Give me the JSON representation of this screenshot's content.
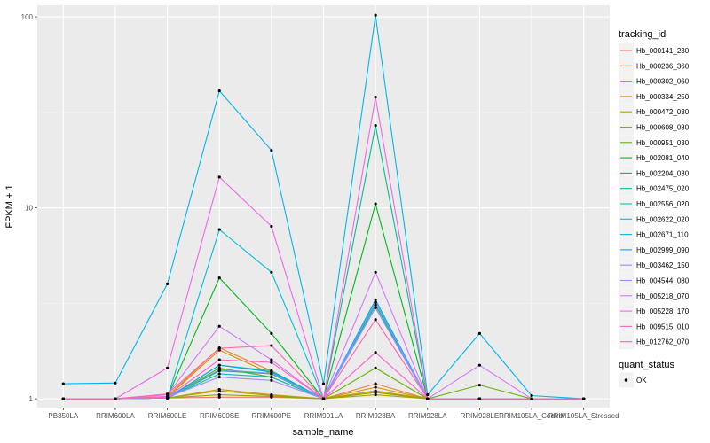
{
  "chart_data": {
    "type": "line",
    "xlabel": "sample_name",
    "ylabel": "FPKM + 1",
    "y_scale": "log10",
    "ylim": [
      0.9,
      115
    ],
    "y_ticks": [
      1,
      10,
      100
    ],
    "y_tick_labels": [
      "1",
      "10",
      "100"
    ],
    "categories": [
      "PB350LA",
      "RRIM600LA",
      "RRIM600LE",
      "RRIM600SE",
      "RRIM600PE",
      "RRIM901LA",
      "RRIM928BA",
      "RRIM928LA",
      "RRIM928LE",
      "RRIM105LA_Control",
      "RRIM105LA_Stressed"
    ],
    "grid": true,
    "panel_background": "#ebebeb",
    "legend_position": "right",
    "legend_title": "tracking_id",
    "point_legend": {
      "title": "quant_status",
      "entries": [
        "OK"
      ]
    },
    "series": [
      {
        "name": "Hb_000141_230",
        "color": "#F8766D",
        "values": [
          1,
          1,
          1.01,
          1.02,
          1.02,
          1,
          1.08,
          1,
          1,
          1,
          1
        ]
      },
      {
        "name": "Hb_000236_360",
        "color": "#EC8239",
        "values": [
          1,
          1,
          1.03,
          1.85,
          1.4,
          1,
          1.2,
          1,
          1,
          1,
          1
        ]
      },
      {
        "name": "Hb_000302_060",
        "color": "#DB8E00",
        "values": [
          1,
          1,
          1.02,
          1.8,
          1.35,
          1,
          1.15,
          1,
          1,
          1,
          1
        ]
      },
      {
        "name": "Hb_000334_250",
        "color": "#C79800",
        "values": [
          1,
          1,
          1.01,
          1.12,
          1.05,
          1,
          1.1,
          1,
          1,
          1,
          1
        ]
      },
      {
        "name": "Hb_000472_030",
        "color": "#AEA200",
        "values": [
          1,
          1,
          1.01,
          1.1,
          1.04,
          1,
          1.05,
          1,
          1,
          1,
          1
        ]
      },
      {
        "name": "Hb_000608_080",
        "color": "#8FAA00",
        "values": [
          1,
          1,
          1.01,
          1.05,
          1.03,
          1,
          1.08,
          1,
          1,
          1,
          1
        ]
      },
      {
        "name": "Hb_000951_030",
        "color": "#64B200",
        "values": [
          1,
          1,
          1.01,
          1.45,
          1.3,
          1,
          1.45,
          1,
          1.18,
          1,
          1
        ]
      },
      {
        "name": "Hb_002081_040",
        "color": "#00B81B",
        "values": [
          1,
          1,
          1.02,
          4.3,
          2.2,
          1,
          10.5,
          1,
          1,
          1,
          1
        ]
      },
      {
        "name": "Hb_002204_030",
        "color": "#00BD5C",
        "values": [
          1,
          1,
          1.01,
          1.4,
          1.35,
          1,
          3.1,
          1,
          1,
          1,
          1
        ]
      },
      {
        "name": "Hb_002475_020",
        "color": "#00C08E",
        "values": [
          1,
          1,
          1.01,
          1.5,
          1.4,
          1,
          27,
          1,
          1,
          1,
          1
        ]
      },
      {
        "name": "Hb_002556_020",
        "color": "#00C1B7",
        "values": [
          1,
          1,
          1.01,
          1.35,
          1.3,
          1,
          3.0,
          1,
          1,
          1,
          1
        ]
      },
      {
        "name": "Hb_002622_020",
        "color": "#00BDDC",
        "values": [
          1,
          1,
          1.01,
          7.7,
          4.6,
          1,
          3.2,
          1,
          1,
          1,
          1
        ]
      },
      {
        "name": "Hb_002671_110",
        "color": "#00B4F0",
        "values": [
          1.2,
          1.21,
          4.0,
          41,
          20,
          1.2,
          102,
          1.05,
          2.2,
          1.04,
          1
        ]
      },
      {
        "name": "Hb_002999_090",
        "color": "#00A5FF",
        "values": [
          1,
          1,
          1.01,
          1.5,
          1.38,
          1,
          3.3,
          1,
          1,
          1,
          1
        ]
      },
      {
        "name": "Hb_003462_150",
        "color": "#7997FF",
        "values": [
          1,
          1,
          1.01,
          1.42,
          1.36,
          1,
          3.2,
          1,
          1,
          1,
          1
        ]
      },
      {
        "name": "Hb_004544_080",
        "color": "#A58AFF",
        "values": [
          1,
          1,
          1.02,
          1.3,
          1.25,
          1,
          3.0,
          1,
          1,
          1,
          1
        ]
      },
      {
        "name": "Hb_005218_070",
        "color": "#D575FE",
        "values": [
          1,
          1,
          1.05,
          2.4,
          1.6,
          1,
          4.6,
          1,
          1.5,
          1,
          1
        ]
      },
      {
        "name": "Hb_005228_170",
        "color": "#F066EA",
        "values": [
          1,
          1,
          1.45,
          14.5,
          8.0,
          1,
          38,
          1,
          1,
          1,
          1
        ]
      },
      {
        "name": "Hb_009515_010",
        "color": "#FF61C9",
        "values": [
          1,
          1,
          1.02,
          1.6,
          1.55,
          1,
          1.75,
          1,
          1,
          1,
          1
        ]
      },
      {
        "name": "Hb_012762_070",
        "color": "#FF65AA",
        "values": [
          1,
          1,
          1.06,
          1.84,
          1.9,
          1,
          2.6,
          1,
          1,
          1,
          1
        ]
      }
    ]
  }
}
